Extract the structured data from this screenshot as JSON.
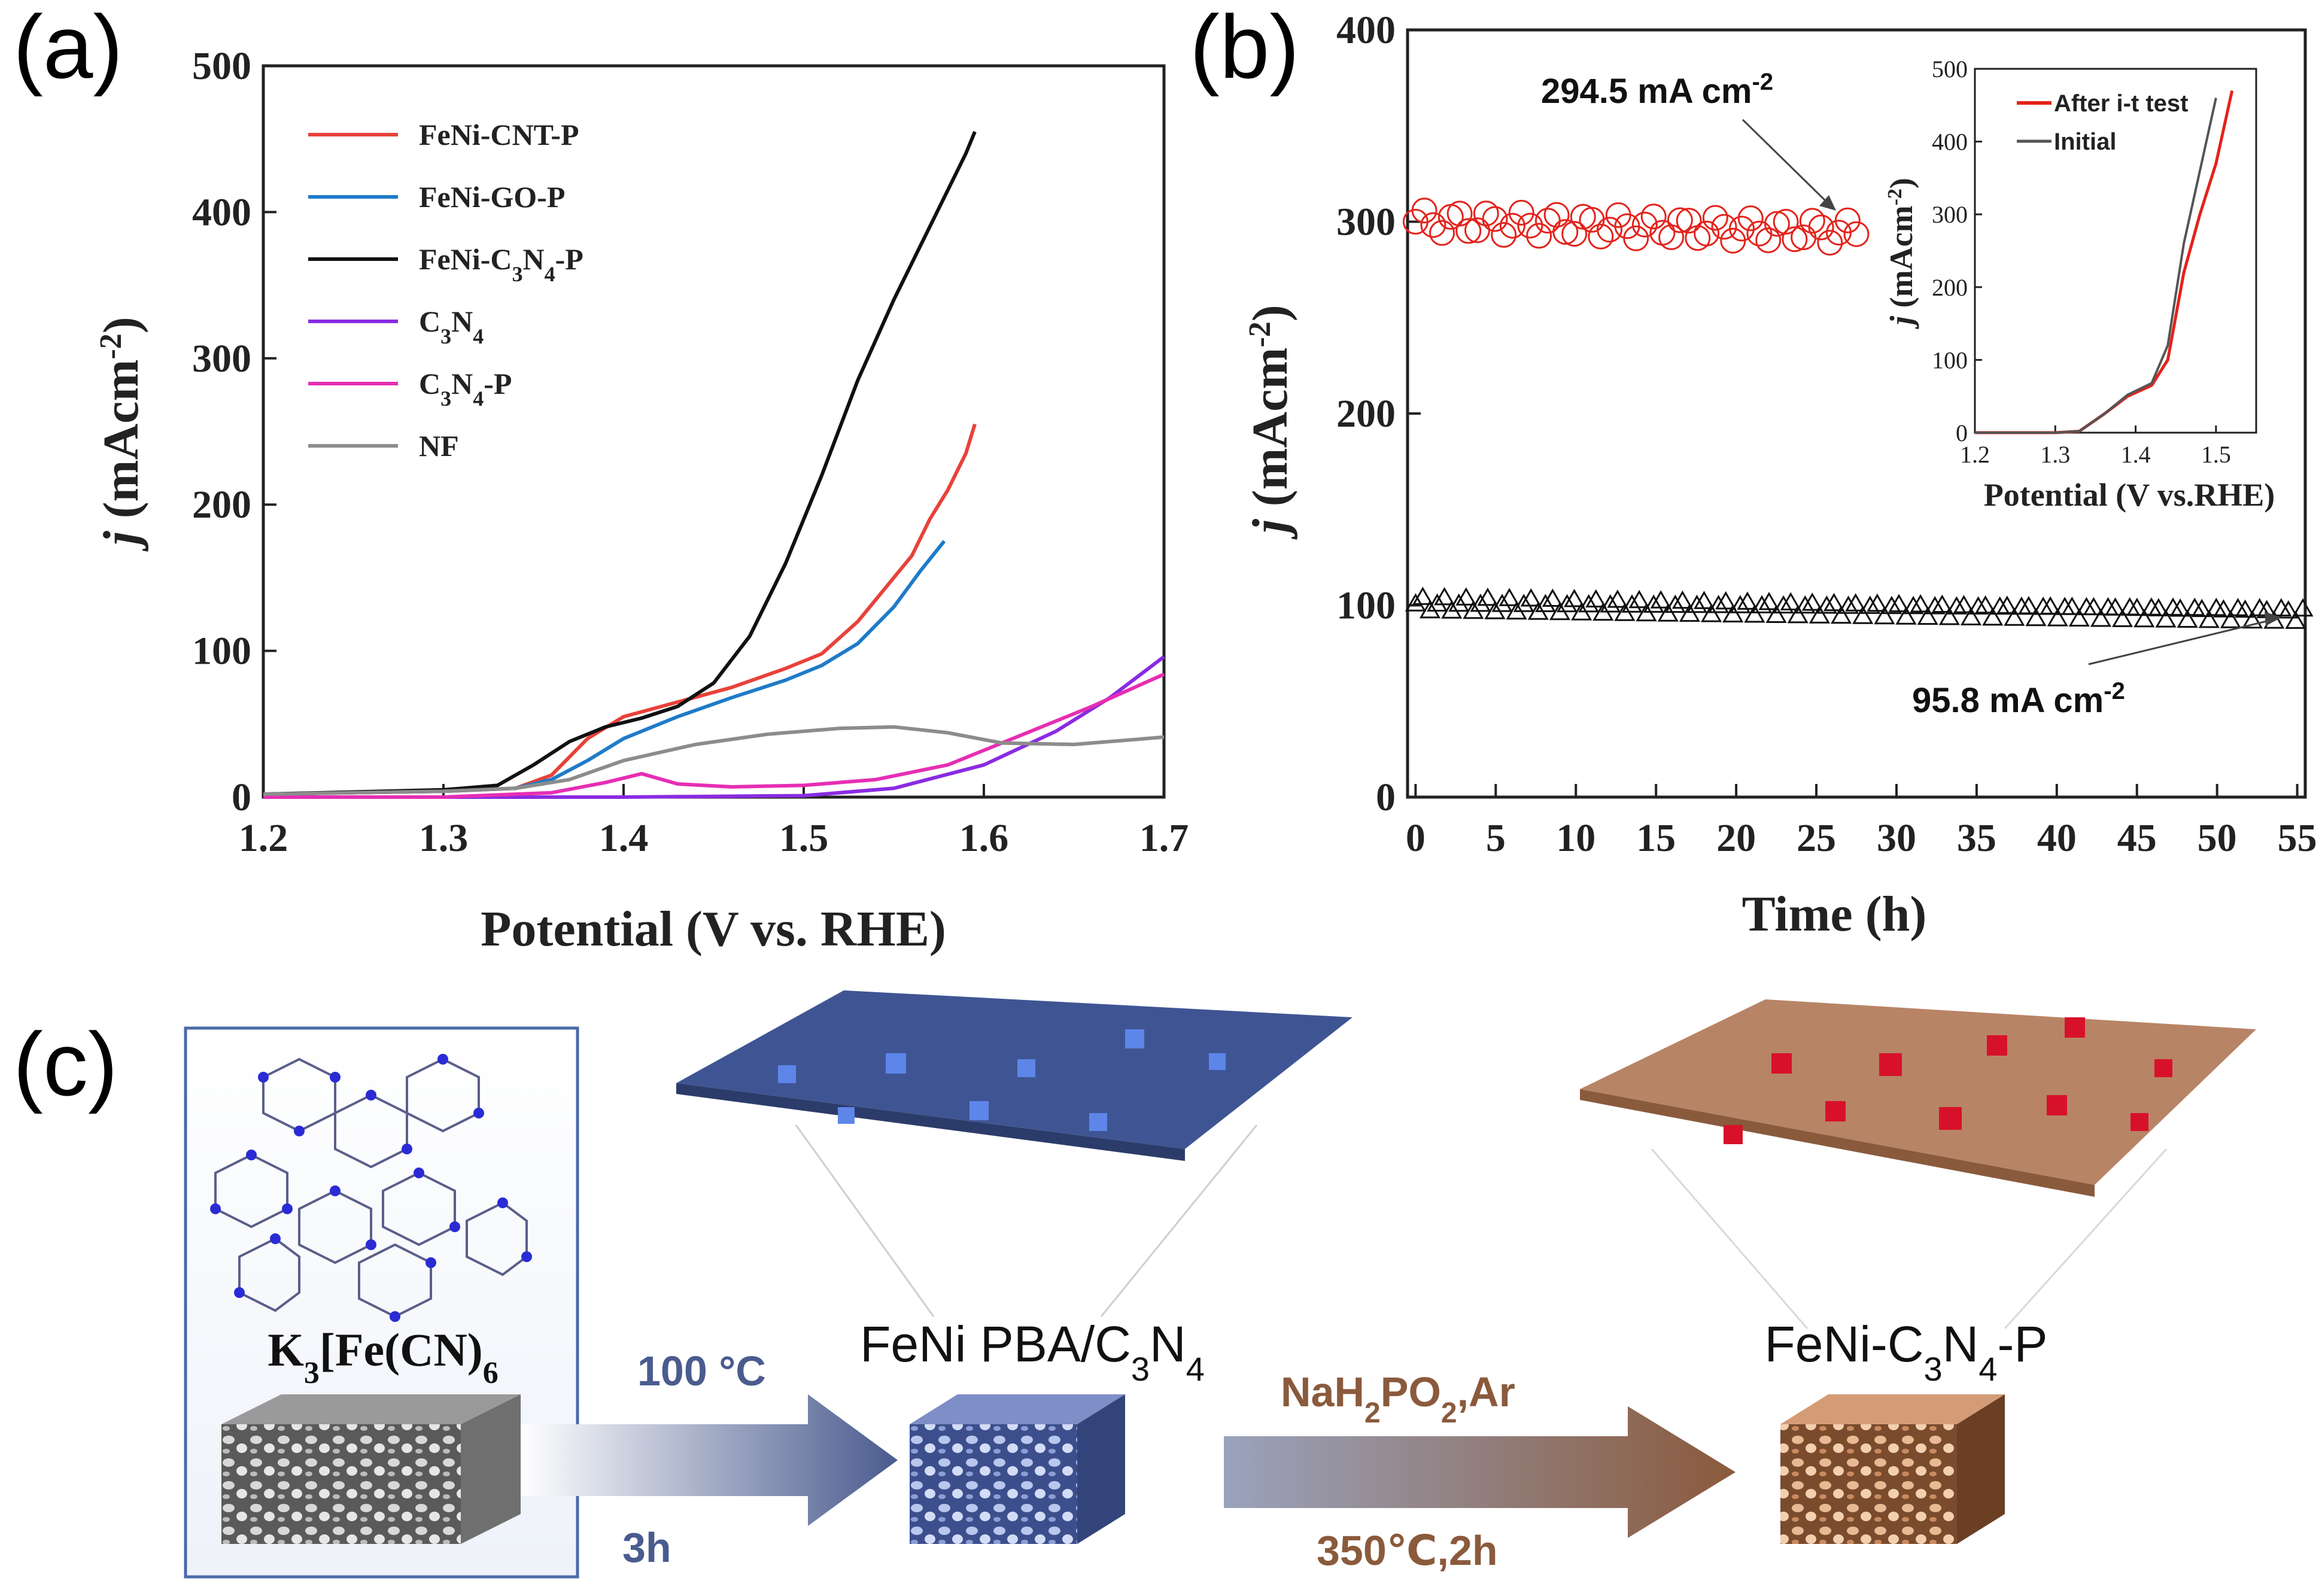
{
  "panel_labels": {
    "a": "(a)",
    "b": "(b)",
    "c": "(c)"
  },
  "colors": {
    "FeNi-CNT-P": "#e8423a",
    "FeNi-GO-P": "#1f7bc8",
    "FeNi-C3N4-P": "#111111",
    "C3N4": "#8a2be2",
    "C3N4-P": "#e62eb4",
    "NF": "#8c8c8c",
    "it_upper": "#e3231c",
    "it_lower": "#111111",
    "arrow1": "#4a5b8e",
    "arrow2": "#8a5a3c"
  },
  "chart_data": [
    {
      "id": "a",
      "type": "line",
      "xlabel": "Potential (V vs. RHE)",
      "ylabel_italic": "j",
      "ylabel_rest": " (mAcm",
      "ylabel_sup": "-2",
      "ylabel_close": ")",
      "xlim": [
        1.2,
        1.7
      ],
      "ylim": [
        0,
        500
      ],
      "xticks": [
        "1.2",
        "1.3",
        "1.4",
        "1.5",
        "1.6",
        "1.7"
      ],
      "yticks": [
        "0",
        "100",
        "200",
        "300",
        "400",
        "500"
      ],
      "legend_position": "top-left",
      "series": [
        {
          "name": "FeNi-CNT-P",
          "legend_main": "FeNi-CNT-P",
          "legend_sub": "",
          "legend_tail": "",
          "legend_sub2": "",
          "legend_tail2": "",
          "x": [
            1.2,
            1.3,
            1.34,
            1.36,
            1.38,
            1.4,
            1.43,
            1.46,
            1.49,
            1.51,
            1.53,
            1.55,
            1.56,
            1.57,
            1.58,
            1.59,
            1.595
          ],
          "y": [
            2,
            4,
            6,
            15,
            40,
            55,
            65,
            75,
            88,
            98,
            120,
            150,
            165,
            190,
            210,
            235,
            255
          ]
        },
        {
          "name": "FeNi-GO-P",
          "legend_main": "FeNi-GO-P",
          "legend_sub": "",
          "legend_tail": "",
          "legend_sub2": "",
          "legend_tail2": "",
          "x": [
            1.2,
            1.3,
            1.34,
            1.36,
            1.38,
            1.4,
            1.43,
            1.46,
            1.49,
            1.51,
            1.53,
            1.55,
            1.565,
            1.578
          ],
          "y": [
            2,
            4,
            6,
            12,
            25,
            40,
            55,
            68,
            80,
            90,
            105,
            130,
            155,
            175
          ]
        },
        {
          "name": "FeNi-C3N4-P",
          "legend_main": "FeNi-C",
          "legend_sub": "3",
          "legend_tail": "N",
          "legend_sub2": "4",
          "legend_tail2": "-P",
          "x": [
            1.2,
            1.3,
            1.33,
            1.35,
            1.37,
            1.39,
            1.41,
            1.43,
            1.45,
            1.47,
            1.49,
            1.51,
            1.53,
            1.55,
            1.57,
            1.59,
            1.595
          ],
          "y": [
            2,
            5,
            8,
            22,
            38,
            48,
            54,
            62,
            78,
            110,
            160,
            220,
            285,
            340,
            390,
            440,
            455
          ]
        },
        {
          "name": "C3N4",
          "legend_main": "C",
          "legend_sub": "3",
          "legend_tail": "N",
          "legend_sub2": "4",
          "legend_tail2": "",
          "x": [
            1.2,
            1.3,
            1.4,
            1.5,
            1.55,
            1.6,
            1.64,
            1.67,
            1.7
          ],
          "y": [
            0,
            0,
            0,
            1,
            6,
            22,
            45,
            68,
            96
          ]
        },
        {
          "name": "C3N4-P",
          "legend_main": "C",
          "legend_sub": "3",
          "legend_tail": "N",
          "legend_sub2": "4",
          "legend_tail2": "-P",
          "x": [
            1.2,
            1.3,
            1.36,
            1.39,
            1.41,
            1.43,
            1.46,
            1.5,
            1.54,
            1.58,
            1.62,
            1.66,
            1.7
          ],
          "y": [
            0,
            0,
            3,
            10,
            16,
            9,
            7,
            8,
            12,
            22,
            42,
            62,
            84
          ]
        },
        {
          "name": "NF",
          "legend_main": "NF",
          "legend_sub": "",
          "legend_tail": "",
          "legend_sub2": "",
          "legend_tail2": "",
          "x": [
            1.2,
            1.3,
            1.34,
            1.37,
            1.4,
            1.44,
            1.48,
            1.52,
            1.55,
            1.58,
            1.61,
            1.65,
            1.7
          ],
          "y": [
            2,
            4,
            6,
            12,
            25,
            36,
            43,
            47,
            48,
            44,
            37,
            36,
            41
          ]
        }
      ]
    },
    {
      "id": "b",
      "type": "scatter",
      "xlabel": "Time (h)",
      "ylabel_italic": "j",
      "ylabel_rest": " (mAcm",
      "ylabel_sup": "-2",
      "ylabel_close": ")",
      "xlim": [
        -0.5,
        55.5
      ],
      "ylim": [
        0,
        400
      ],
      "xticks": [
        0,
        5,
        10,
        15,
        20,
        25,
        30,
        35,
        40,
        45,
        50,
        55
      ],
      "yticks": [
        0,
        100,
        200,
        300,
        400
      ],
      "annotations": [
        {
          "main": "294.5 mA cm",
          "sup": "-2"
        },
        {
          "main": "95.8 mA cm",
          "sup": "-2"
        }
      ],
      "series": [
        {
          "name": "upper",
          "marker": "circle-open",
          "t_start": 0,
          "t_end": 28,
          "mean": 300,
          "amplitude": 6,
          "final": 294.5
        },
        {
          "name": "lower",
          "marker": "triangle-open",
          "t_start": 0,
          "t_end": 55.5,
          "mean": 101,
          "amplitude": 4,
          "final": 95.8
        }
      ]
    },
    {
      "id": "b-inset",
      "type": "line",
      "xlabel": "Potential (V vs.RHE)",
      "ylabel_italic": "j",
      "ylabel_rest": " (mAcm",
      "ylabel_sup": "-2",
      "ylabel_close": ")",
      "xlim": [
        1.2,
        1.55
      ],
      "ylim": [
        0,
        500
      ],
      "xticks": [
        "1.2",
        "1.3",
        "1.4",
        "1.5"
      ],
      "yticks": [
        "0",
        "100",
        "200",
        "300",
        "400",
        "500"
      ],
      "legend_position": "top",
      "series": [
        {
          "name": "After i-t test",
          "x": [
            1.2,
            1.3,
            1.33,
            1.36,
            1.39,
            1.42,
            1.44,
            1.46,
            1.48,
            1.5,
            1.52
          ],
          "y": [
            0,
            0,
            2,
            25,
            50,
            65,
            100,
            220,
            300,
            370,
            470
          ]
        },
        {
          "name": "Initial",
          "x": [
            1.2,
            1.3,
            1.33,
            1.36,
            1.39,
            1.42,
            1.44,
            1.46,
            1.48,
            1.5
          ],
          "y": [
            0,
            0,
            2,
            25,
            52,
            68,
            120,
            260,
            360,
            460
          ]
        }
      ]
    }
  ],
  "schematic": {
    "precursor_label_main": "K",
    "precursor_label_sub1": "3",
    "precursor_label_mid": "[Fe(CN)",
    "precursor_label_sub2": "6",
    "middle_label_main": "FeNi PBA/C",
    "middle_label_sub1": "3",
    "middle_label_mid": "N",
    "middle_label_sub2": "4",
    "right_label_main": "FeNi-C",
    "right_label_sub1": "3",
    "right_label_mid": "N",
    "right_label_sub2": "4",
    "right_label_tail": "-P",
    "step1_top": "100 °C",
    "step1_bottom": "3h",
    "step2_top_main": "NaH",
    "step2_top_sub1": "2",
    "step2_top_mid": "PO",
    "step2_top_sub2": "2",
    "step2_top_tail": ",Ar",
    "step2_bottom": "350℃,2h"
  }
}
